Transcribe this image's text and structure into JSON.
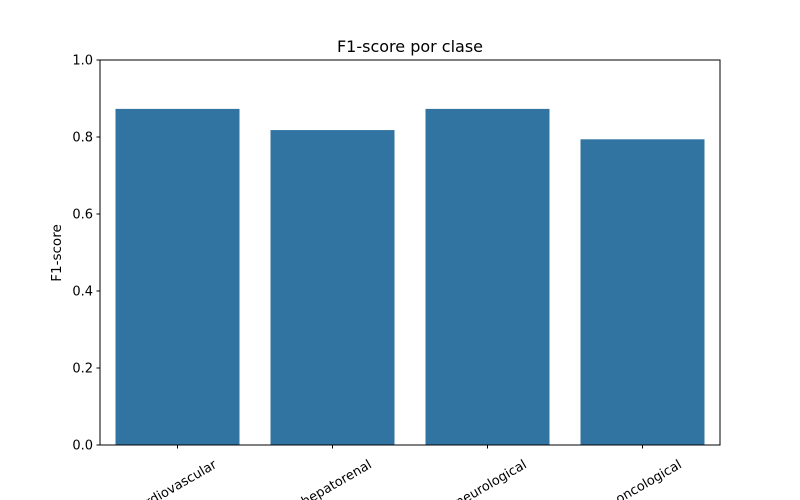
{
  "chart_data": {
    "type": "bar",
    "title": "F1-score por clase",
    "xlabel": "",
    "ylabel": "F1-score",
    "categories": [
      "cardiovascular",
      "hepatorenal",
      "neurological",
      "oncological"
    ],
    "values": [
      0.873,
      0.818,
      0.873,
      0.794
    ],
    "ylim": [
      0,
      1.0
    ],
    "yticks": [
      "0.0",
      "0.2",
      "0.4",
      "0.6",
      "0.8",
      "1.0"
    ],
    "bar_color": "#3274a1",
    "grid": false,
    "legend": "none"
  }
}
